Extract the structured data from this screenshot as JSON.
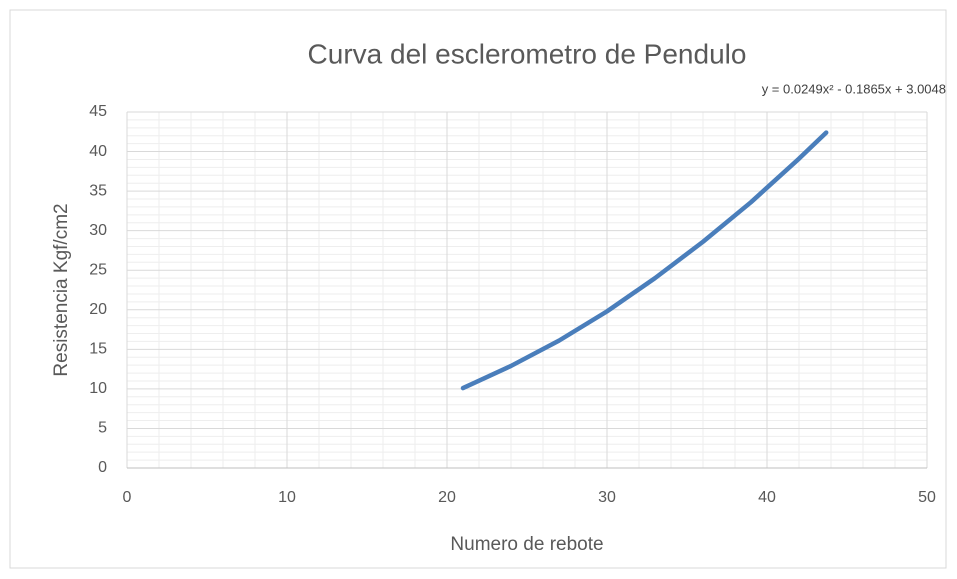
{
  "chart_data": {
    "type": "line",
    "title": "Curva del esclerometro de Pendulo",
    "annotation": "y = 0.0249x² - 0.1865x + 3.0048",
    "x_label": "Numero de rebote",
    "y_label": "Resistencia Kgf/cm2",
    "x": [
      21,
      24,
      27,
      30,
      33,
      36,
      39,
      42,
      43.7
    ],
    "series": [
      {
        "color": "#4a7ebb",
        "values": [
          10.1,
          12.9,
          16.1,
          19.8,
          24.0,
          28.6,
          33.6,
          39.1,
          42.4
        ]
      }
    ],
    "xlim": [
      0,
      50
    ],
    "xticks": [
      0,
      10,
      20,
      30,
      40,
      50
    ],
    "ylim": [
      0,
      45
    ],
    "yticks": [
      0,
      5,
      10,
      15,
      20,
      25,
      30,
      35,
      40,
      45
    ],
    "grid": true,
    "minor_grid": true
  }
}
